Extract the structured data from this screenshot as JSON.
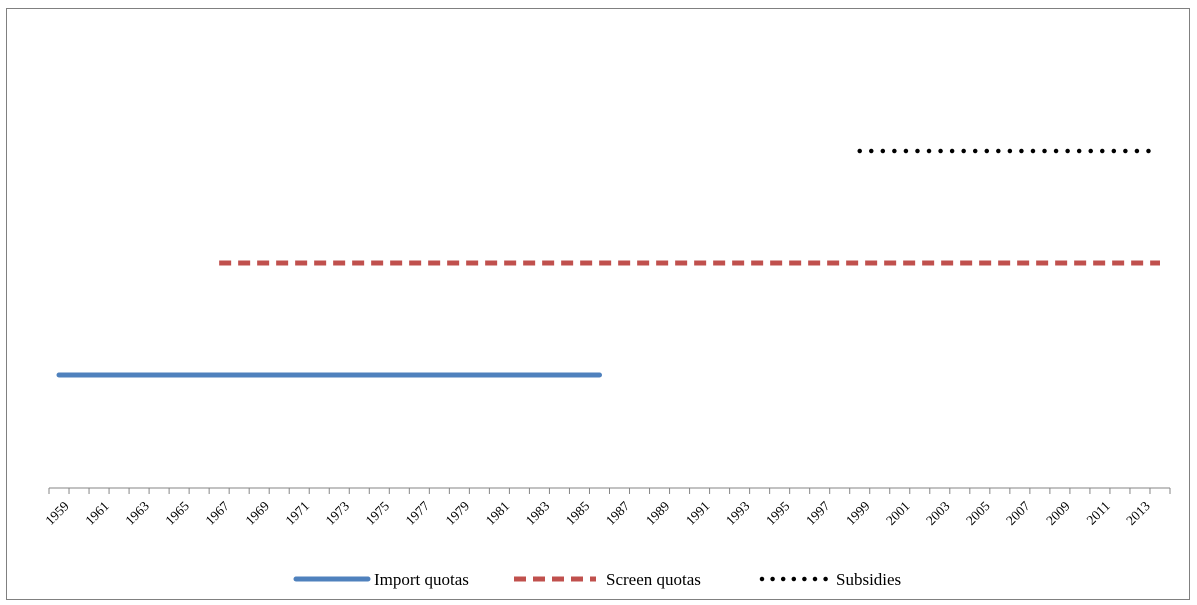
{
  "chart_data": {
    "type": "line",
    "title": "",
    "xlabel": "",
    "ylabel": "",
    "x_start": 1959,
    "x_end": 2014,
    "tick_labels": [
      "1959",
      "1961",
      "1963",
      "1965",
      "1967",
      "1969",
      "1971",
      "1973",
      "1975",
      "1977",
      "1979",
      "1981",
      "1983",
      "1985",
      "1987",
      "1989",
      "1991",
      "1993",
      "1995",
      "1997",
      "1999",
      "2001",
      "2003",
      "2005",
      "2007",
      "2009",
      "2011",
      "2013"
    ],
    "y_axis_visible": false,
    "grid": false,
    "legend_position": "bottom",
    "series": [
      {
        "name": "Import quotas",
        "start": 1959,
        "end": 1986,
        "level": 1,
        "color": "#4f81bd",
        "style": "solid"
      },
      {
        "name": "Screen quotas",
        "start": 1967,
        "end": 2014,
        "level": 2,
        "color": "#c0504d",
        "style": "dashed"
      },
      {
        "name": "Subsidies",
        "start": 1999,
        "end": 2014,
        "level": 3,
        "color": "#000000",
        "style": "dotted"
      }
    ]
  }
}
